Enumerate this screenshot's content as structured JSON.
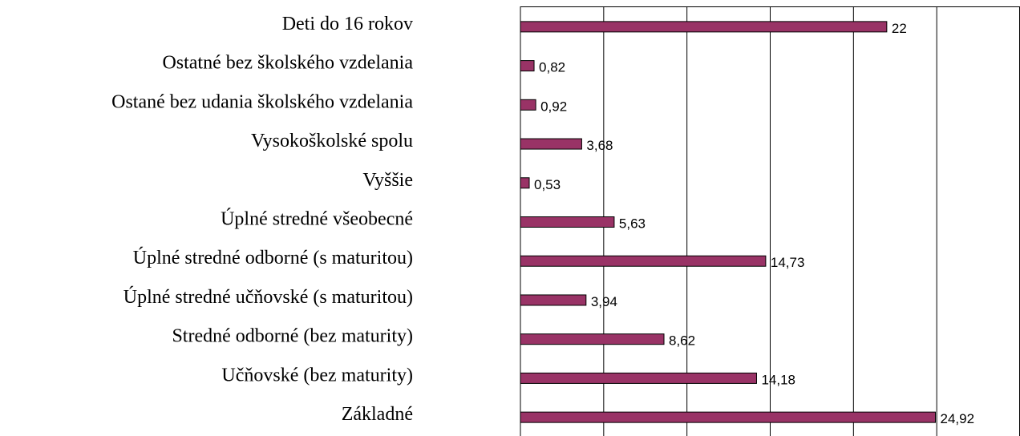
{
  "chart_data": {
    "type": "bar",
    "orientation": "horizontal",
    "categories": [
      "Deti do 16 rokov",
      "Ostatné bez školského vzdelania",
      "Ostané bez udania školského vzdelania",
      "Vysokoškolské spolu",
      "Vyššie",
      "Úplné stredné všeobecné",
      "Úplné stredné odborné (s maturitou)",
      "Úplné stredné učňovské (s maturitou)",
      "Stredné odborné (bez maturity)",
      "Učňovské (bez maturity)",
      "Základné"
    ],
    "values": [
      22,
      0.82,
      0.92,
      3.68,
      0.53,
      5.63,
      14.73,
      3.94,
      8.62,
      14.18,
      24.92
    ],
    "value_labels": [
      "22",
      "0,82",
      "0,92",
      "3,68",
      "0,53",
      "5,63",
      "14,73",
      "3,94",
      "8,62",
      "14,18",
      "24,92"
    ],
    "color": "#993366",
    "xlim": [
      0,
      30
    ],
    "xticks": [
      0,
      5,
      10,
      15,
      20,
      25,
      30
    ],
    "grid": true
  }
}
